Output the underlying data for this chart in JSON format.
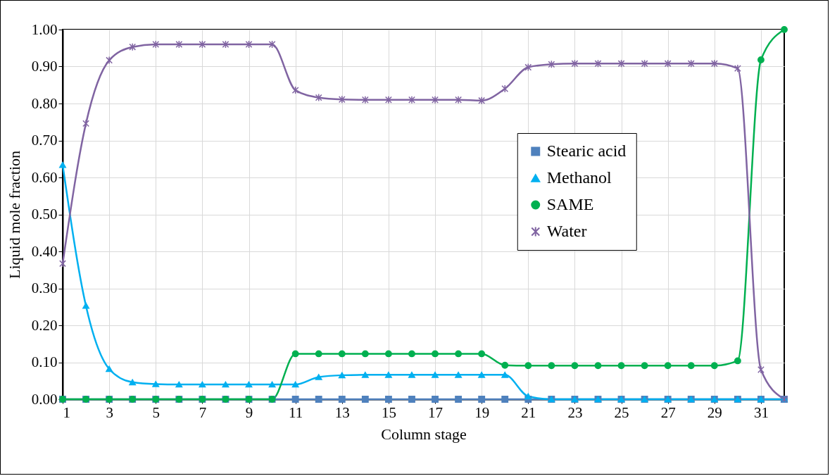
{
  "chart_data": {
    "type": "line",
    "xlabel": "Column stage",
    "ylabel": "Liquid mole fraction",
    "x": [
      1,
      2,
      3,
      4,
      5,
      6,
      7,
      8,
      9,
      10,
      11,
      12,
      13,
      14,
      15,
      16,
      17,
      18,
      19,
      20,
      21,
      22,
      23,
      24,
      25,
      26,
      27,
      28,
      29,
      30,
      31,
      32
    ],
    "xlim": [
      1,
      32
    ],
    "xticks": [
      1,
      3,
      5,
      7,
      9,
      11,
      13,
      15,
      17,
      19,
      21,
      23,
      25,
      27,
      29,
      31
    ],
    "ylim": [
      0,
      1
    ],
    "yticks": [
      {
        "value": 0,
        "label": "0.00"
      },
      {
        "value": 0.1,
        "label": "0.10"
      },
      {
        "value": 0.2,
        "label": "0.20"
      },
      {
        "value": 0.3,
        "label": "0.30"
      },
      {
        "value": 0.4,
        "label": "0.40"
      },
      {
        "value": 0.5,
        "label": "0.50"
      },
      {
        "value": 0.6,
        "label": "0.60"
      },
      {
        "value": 0.7,
        "label": "0.70"
      },
      {
        "value": 0.8,
        "label": "0.80"
      },
      {
        "value": 0.9,
        "label": "0.90"
      },
      {
        "value": 1,
        "label": "1.00"
      }
    ],
    "grid": true,
    "legend": "right",
    "line_style": "solid",
    "series": [
      {
        "name": "Stearic acid",
        "color": "#4f81bd",
        "marker": "square",
        "values": [
          0,
          0,
          0,
          0,
          0,
          0,
          0,
          0,
          0,
          0,
          0,
          0,
          0,
          0,
          0,
          0,
          0,
          0,
          0,
          0,
          0,
          0,
          0,
          0,
          0,
          0,
          0,
          0,
          0,
          0,
          0,
          0
        ]
      },
      {
        "name": "Methanol",
        "color": "#00b0f0",
        "marker": "triangle",
        "values": [
          0.634,
          0.253,
          0.082,
          0.046,
          0.041,
          0.04,
          0.04,
          0.04,
          0.04,
          0.04,
          0.04,
          0.06,
          0.065,
          0.066,
          0.066,
          0.066,
          0.066,
          0.066,
          0.066,
          0.066,
          0.008,
          0,
          0,
          0,
          0,
          0,
          0,
          0,
          0,
          0,
          0,
          0
        ]
      },
      {
        "name": "SAME",
        "color": "#00b050",
        "marker": "circle",
        "values": [
          0,
          0,
          0,
          0,
          0,
          0,
          0,
          0,
          0,
          0,
          0.123,
          0.123,
          0.123,
          0.123,
          0.123,
          0.123,
          0.123,
          0.123,
          0.123,
          0.092,
          0.091,
          0.091,
          0.091,
          0.091,
          0.091,
          0.091,
          0.091,
          0.091,
          0.091,
          0.104,
          0.918,
          1
        ]
      },
      {
        "name": "Water",
        "color": "#8064a2",
        "marker": "cross",
        "values": [
          0.367,
          0.746,
          0.917,
          0.953,
          0.96,
          0.96,
          0.96,
          0.96,
          0.96,
          0.96,
          0.836,
          0.816,
          0.811,
          0.81,
          0.81,
          0.81,
          0.81,
          0.81,
          0.808,
          0.84,
          0.898,
          0.906,
          0.908,
          0.908,
          0.908,
          0.908,
          0.908,
          0.908,
          0.908,
          0.895,
          0.08,
          0
        ]
      }
    ]
  }
}
